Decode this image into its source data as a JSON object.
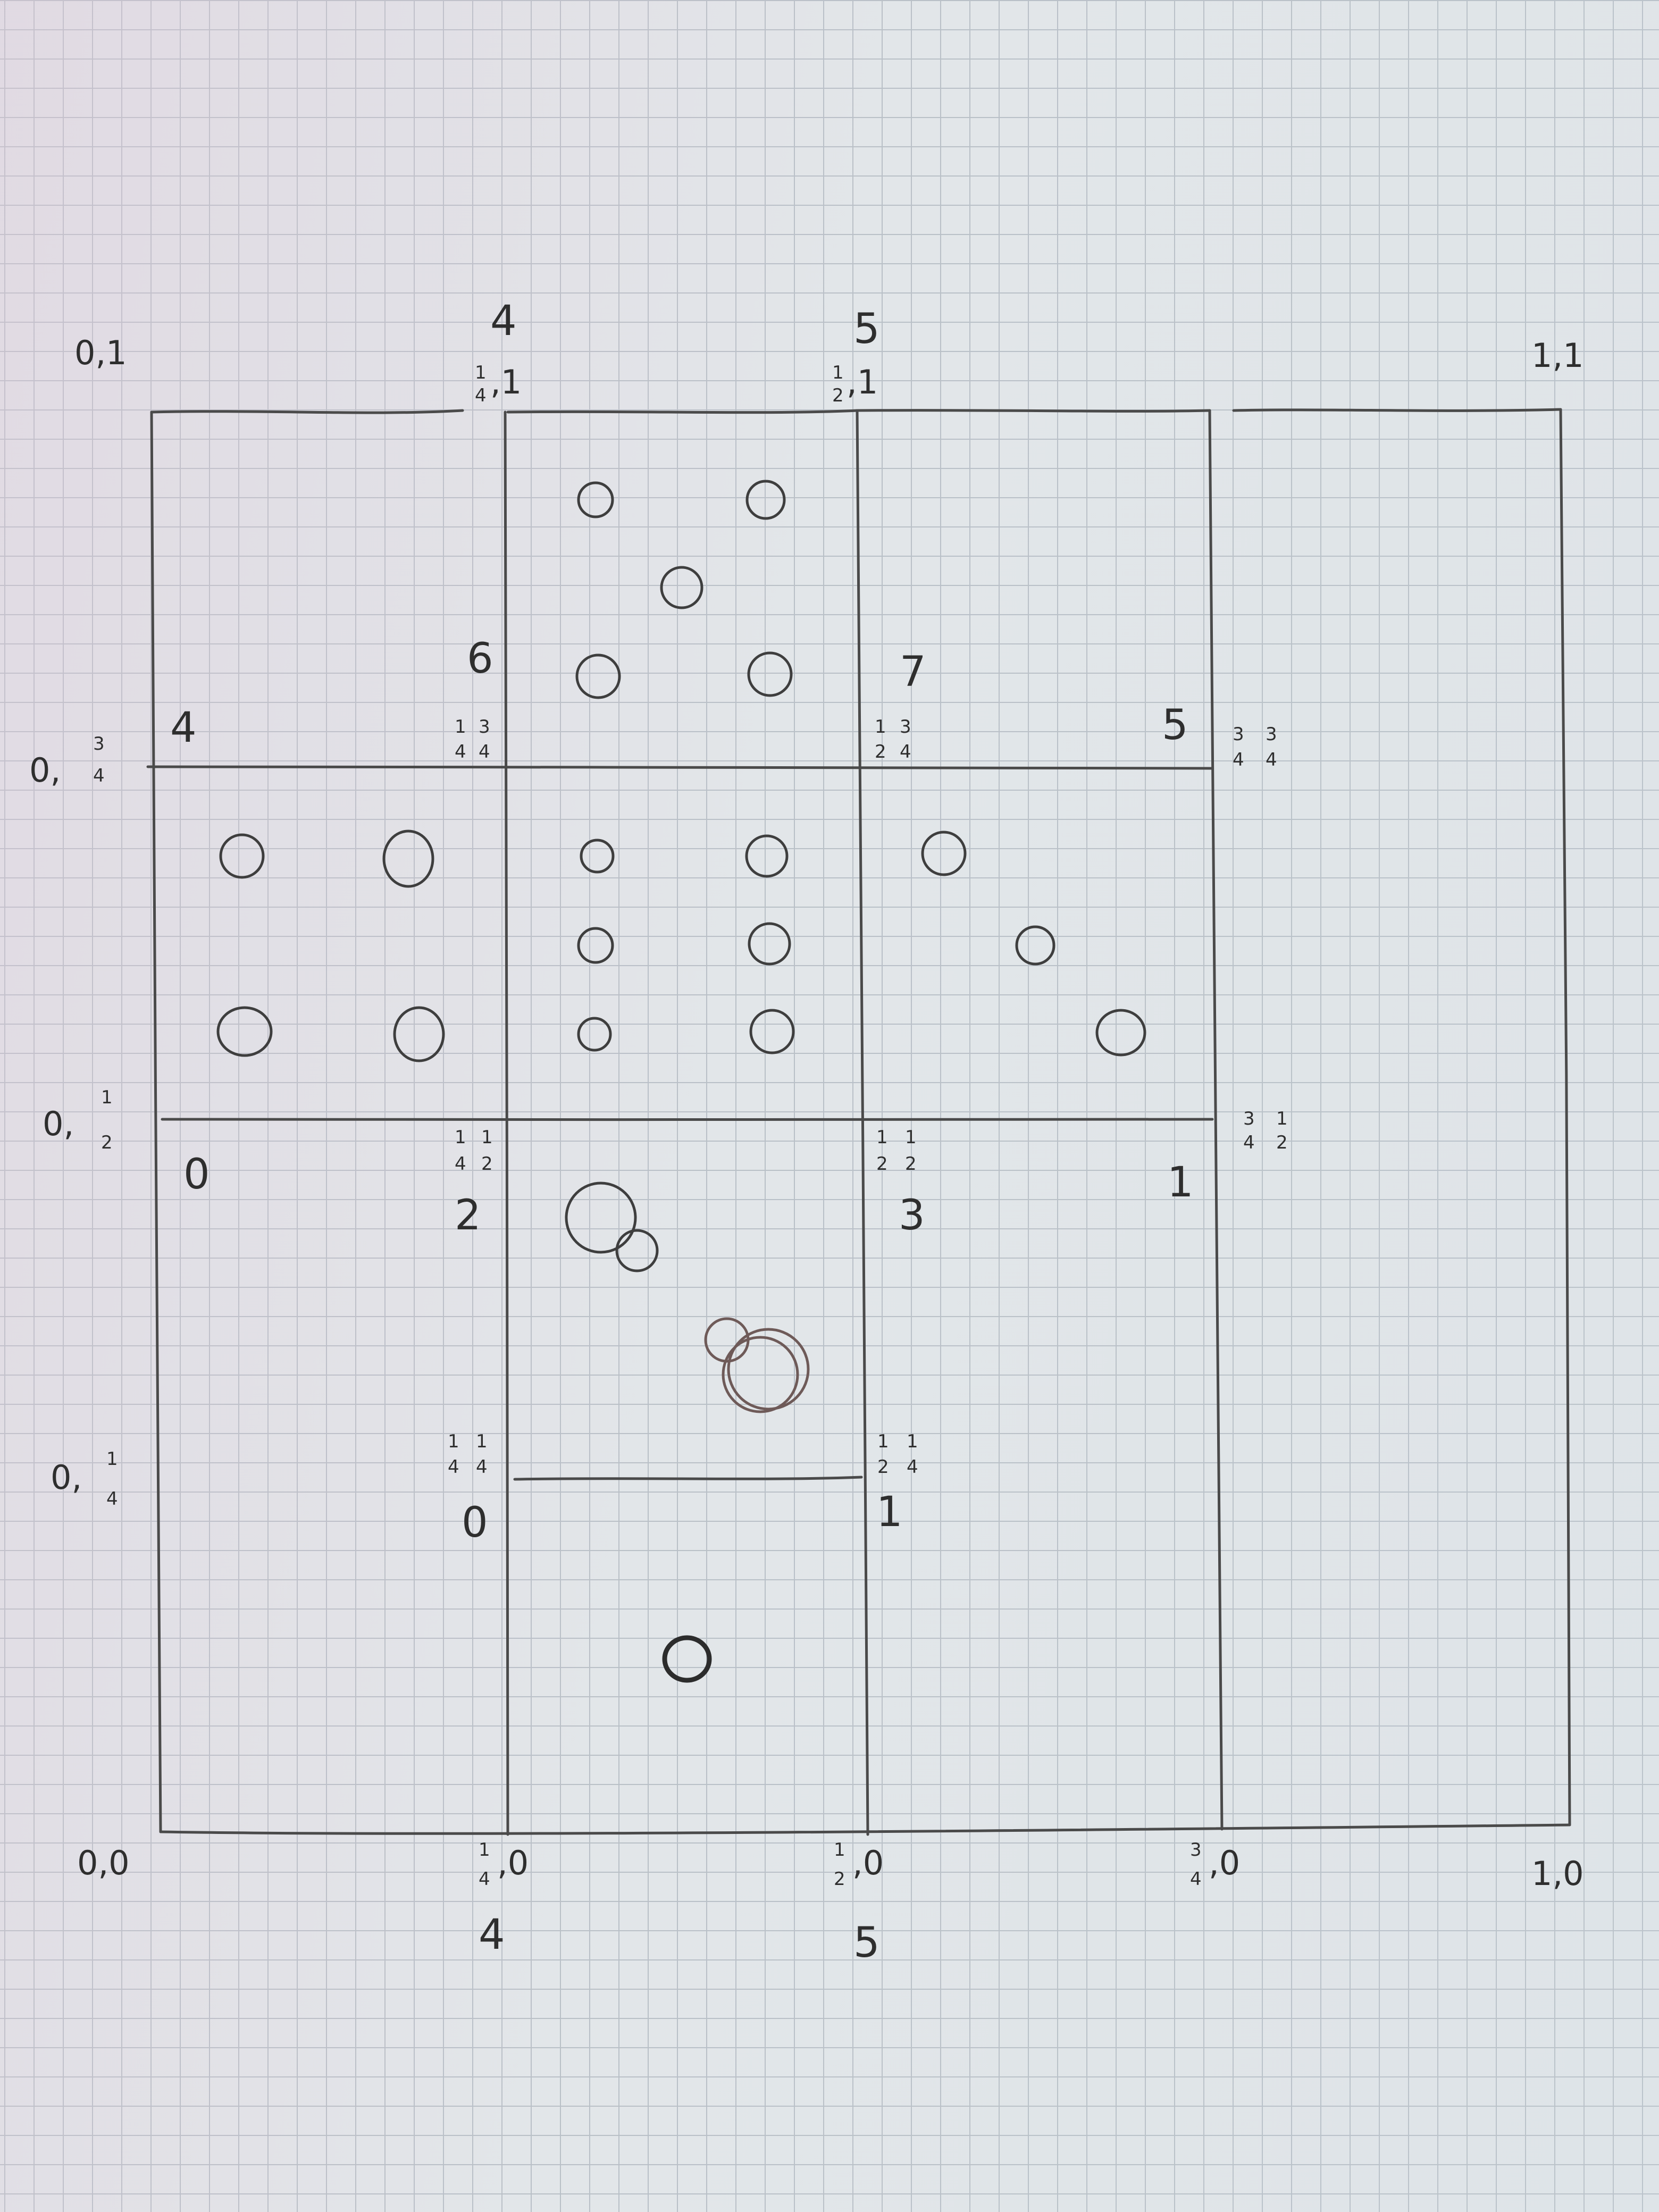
{
  "corners": {
    "top_left": "0,1",
    "top_right": "1,1",
    "bottom_left": "0,0",
    "bottom_right": "1,0"
  },
  "left_axis": {
    "three_quarters_prefix": "0,",
    "three_quarters_num": "3",
    "three_quarters_den": "4",
    "half_prefix": "0,",
    "half_num": "1",
    "half_den": "2",
    "quarter_prefix": "0,",
    "quarter_num": "1",
    "quarter_den": "4"
  },
  "bottom_axis": {
    "q1_num": "1",
    "q1_den": "4",
    "q1_suffix": ",0",
    "q2_num": "1",
    "q2_den": "2",
    "q2_suffix": ",0",
    "q3_num": "3",
    "q3_den": "4",
    "q3_suffix": ",0"
  },
  "top_axis": {
    "q1_num": "1",
    "q1_den": "4",
    "q1_suffix": ",1",
    "q2_num": "1",
    "q2_den": "2",
    "q2_suffix": ",1"
  },
  "inner_points": {
    "p_q1_q3": {
      "a_num": "1",
      "a_den": "4",
      "b_num": "3",
      "b_den": "4"
    },
    "p_q2_q3": {
      "a_num": "1",
      "a_den": "2",
      "b_num": "3",
      "b_den": "4"
    },
    "p_q3_q3": {
      "a_num": "3",
      "a_den": "4",
      "b_num": "3",
      "b_den": "4"
    },
    "p_q1_q2": {
      "a_num": "1",
      "a_den": "4",
      "b_num": "1",
      "b_den": "2"
    },
    "p_q2_q2": {
      "a_num": "1",
      "a_den": "2",
      "b_num": "1",
      "b_den": "2"
    },
    "p_q3_q2": {
      "a_num": "3",
      "a_den": "4",
      "b_num": "1",
      "b_den": "2"
    },
    "p_q1_q1": {
      "a_num": "1",
      "a_den": "4",
      "b_num": "1",
      "b_den": "4"
    },
    "p_q2_q1": {
      "a_num": "1",
      "a_den": "2",
      "b_num": "1",
      "b_den": "4"
    }
  },
  "region_counts": {
    "top_col1": "4",
    "top_col2": "5",
    "upper_left": "4",
    "upper_mid_left": "6",
    "upper_mid_right": "7",
    "upper_right": "5",
    "lower_left": "0",
    "lower_mid_left": "2",
    "lower_mid_right": "3",
    "lower_right": "1",
    "bottom_left_cell": "0",
    "bottom_mid_right": "1",
    "below_col1": "4",
    "below_col2": "5"
  },
  "colors": {
    "paper": "#e2e6e9",
    "grid": "#b9c0c7",
    "pencil": "#4a4a4a"
  }
}
